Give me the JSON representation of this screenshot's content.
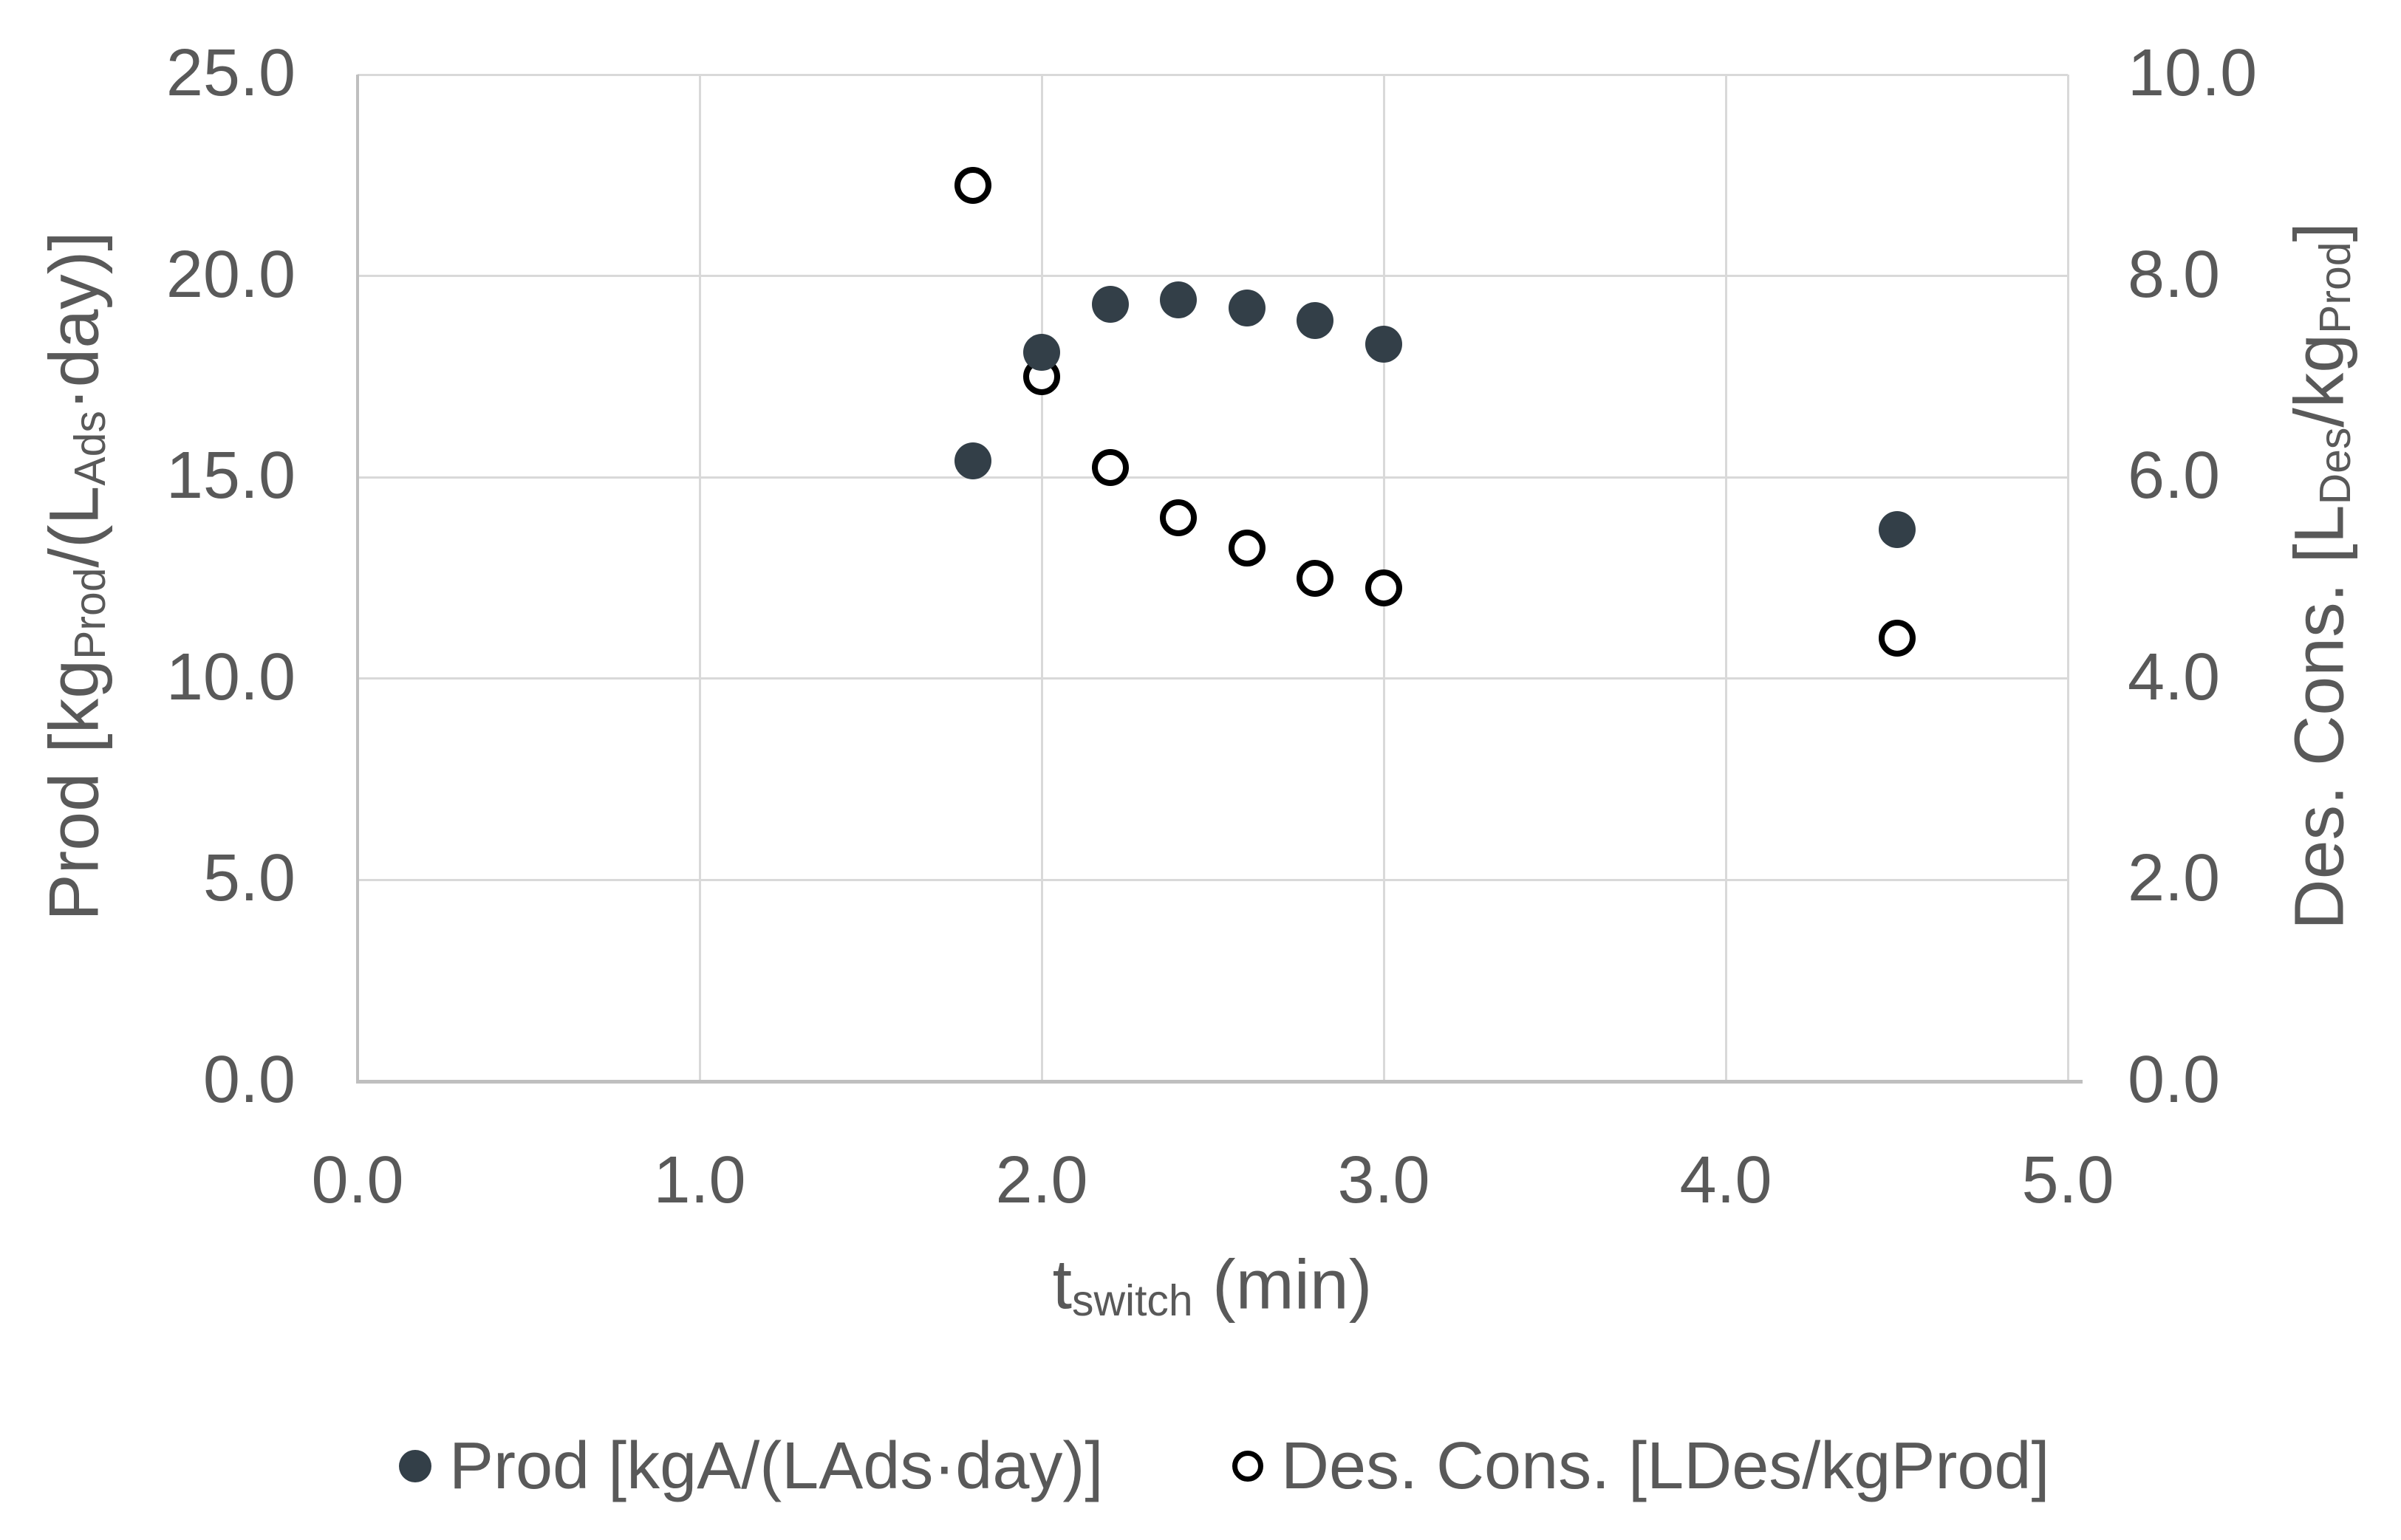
{
  "chart_data": {
    "type": "scatter",
    "x": [
      1.8,
      2.0,
      2.2,
      2.4,
      2.6,
      2.8,
      3.0,
      4.5
    ],
    "series": [
      {
        "name": "Prod [kgA/(LAds·day)]",
        "axis": "left",
        "marker": "filled-circle",
        "color": "#333F48",
        "values": [
          15.4,
          18.1,
          19.3,
          19.4,
          19.2,
          18.9,
          18.3,
          13.7
        ]
      },
      {
        "name": "Des. Cons. [LDes/kgProd]",
        "axis": "right",
        "marker": "open-circle",
        "color": "#000000",
        "values": [
          8.9,
          7.0,
          6.1,
          5.6,
          5.3,
          5.0,
          4.9,
          4.4
        ]
      }
    ],
    "x_axis": {
      "title_parts": [
        {
          "t": "t"
        },
        {
          "t": "switch",
          "sub": true
        },
        {
          "t": " (min)"
        }
      ],
      "ticks": [
        "0.0",
        "1.0",
        "2.0",
        "3.0",
        "4.0",
        "5.0"
      ],
      "min": 0,
      "max": 5
    },
    "left_axis": {
      "title_parts": [
        {
          "t": "Prod [kg"
        },
        {
          "t": "Prod",
          "sub": true
        },
        {
          "t": "/(L"
        },
        {
          "t": "Ads",
          "sub": true
        },
        {
          "t": "·day)]"
        }
      ],
      "ticks": [
        "0.0",
        "5.0",
        "10.0",
        "15.0",
        "20.0",
        "25.0"
      ],
      "min": 0,
      "max": 25
    },
    "right_axis": {
      "title_parts": [
        {
          "t": "Des. Cons. [L"
        },
        {
          "t": "Des",
          "sub": true
        },
        {
          "t": "/kg"
        },
        {
          "t": "Prod",
          "sub": true
        },
        {
          "t": "]"
        }
      ],
      "ticks": [
        "0.0",
        "2.0",
        "4.0",
        "6.0",
        "8.0",
        "10.0"
      ],
      "min": 0,
      "max": 10
    },
    "legend_position": "bottom",
    "grid": true,
    "colors": {
      "gridline": "#d9d9d9",
      "axis_line": "#bfbfbf",
      "text": "#595959",
      "filled_marker": "#333F48",
      "open_marker_stroke": "#000000"
    }
  }
}
